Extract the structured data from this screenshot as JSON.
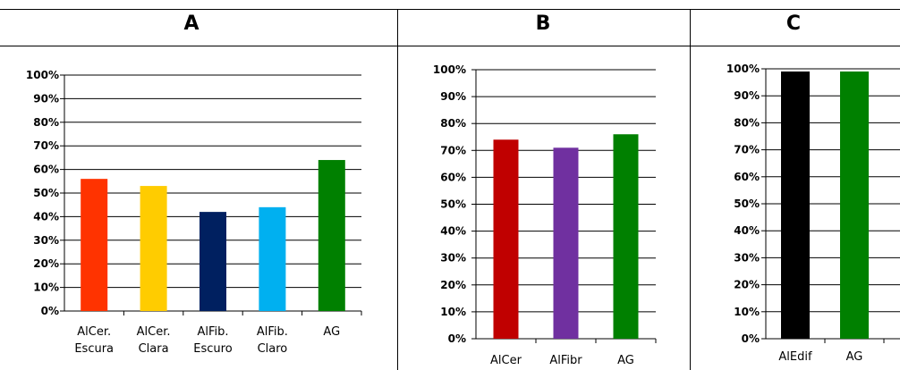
{
  "panels": [
    {
      "label": "A"
    },
    {
      "label": "B"
    },
    {
      "label": "C"
    }
  ],
  "chart_data": [
    {
      "type": "bar",
      "title": "",
      "xlabel": "",
      "ylabel": "",
      "ylim": [
        0,
        100
      ],
      "yticks": [
        "0%",
        "10%",
        "20%",
        "30%",
        "40%",
        "50%",
        "60%",
        "70%",
        "80%",
        "90%",
        "100%"
      ],
      "grid": true,
      "categories": [
        [
          "AlCer.",
          "Escura"
        ],
        [
          "AlCer.",
          "Clara"
        ],
        [
          "AlFib.",
          "Escuro"
        ],
        [
          "AlFib.",
          "Claro"
        ],
        [
          "AG"
        ]
      ],
      "values": [
        56,
        53,
        42,
        44,
        64
      ],
      "colors": [
        "#ff3300",
        "#ffcc00",
        "#002060",
        "#00b0f0",
        "#008000"
      ]
    },
    {
      "type": "bar",
      "title": "",
      "xlabel": "",
      "ylabel": "",
      "ylim": [
        0,
        100
      ],
      "yticks": [
        "0%",
        "10%",
        "20%",
        "30%",
        "40%",
        "50%",
        "60%",
        "70%",
        "80%",
        "90%",
        "100%"
      ],
      "grid": true,
      "categories": [
        [
          "AlCer"
        ],
        [
          "AlFibr"
        ],
        [
          "AG"
        ]
      ],
      "values": [
        74,
        71,
        76
      ],
      "colors": [
        "#c00000",
        "#7030a0",
        "#008000"
      ]
    },
    {
      "type": "bar",
      "title": "",
      "xlabel": "",
      "ylabel": "",
      "ylim": [
        0,
        100
      ],
      "yticks": [
        "0%",
        "10%",
        "20%",
        "30%",
        "40%",
        "50%",
        "60%",
        "70%",
        "80%",
        "90%",
        "100%"
      ],
      "grid": true,
      "categories": [
        [
          "AlEdif"
        ],
        [
          "AG"
        ]
      ],
      "values": [
        99,
        99
      ],
      "colors": [
        "#000000",
        "#008000"
      ]
    }
  ]
}
